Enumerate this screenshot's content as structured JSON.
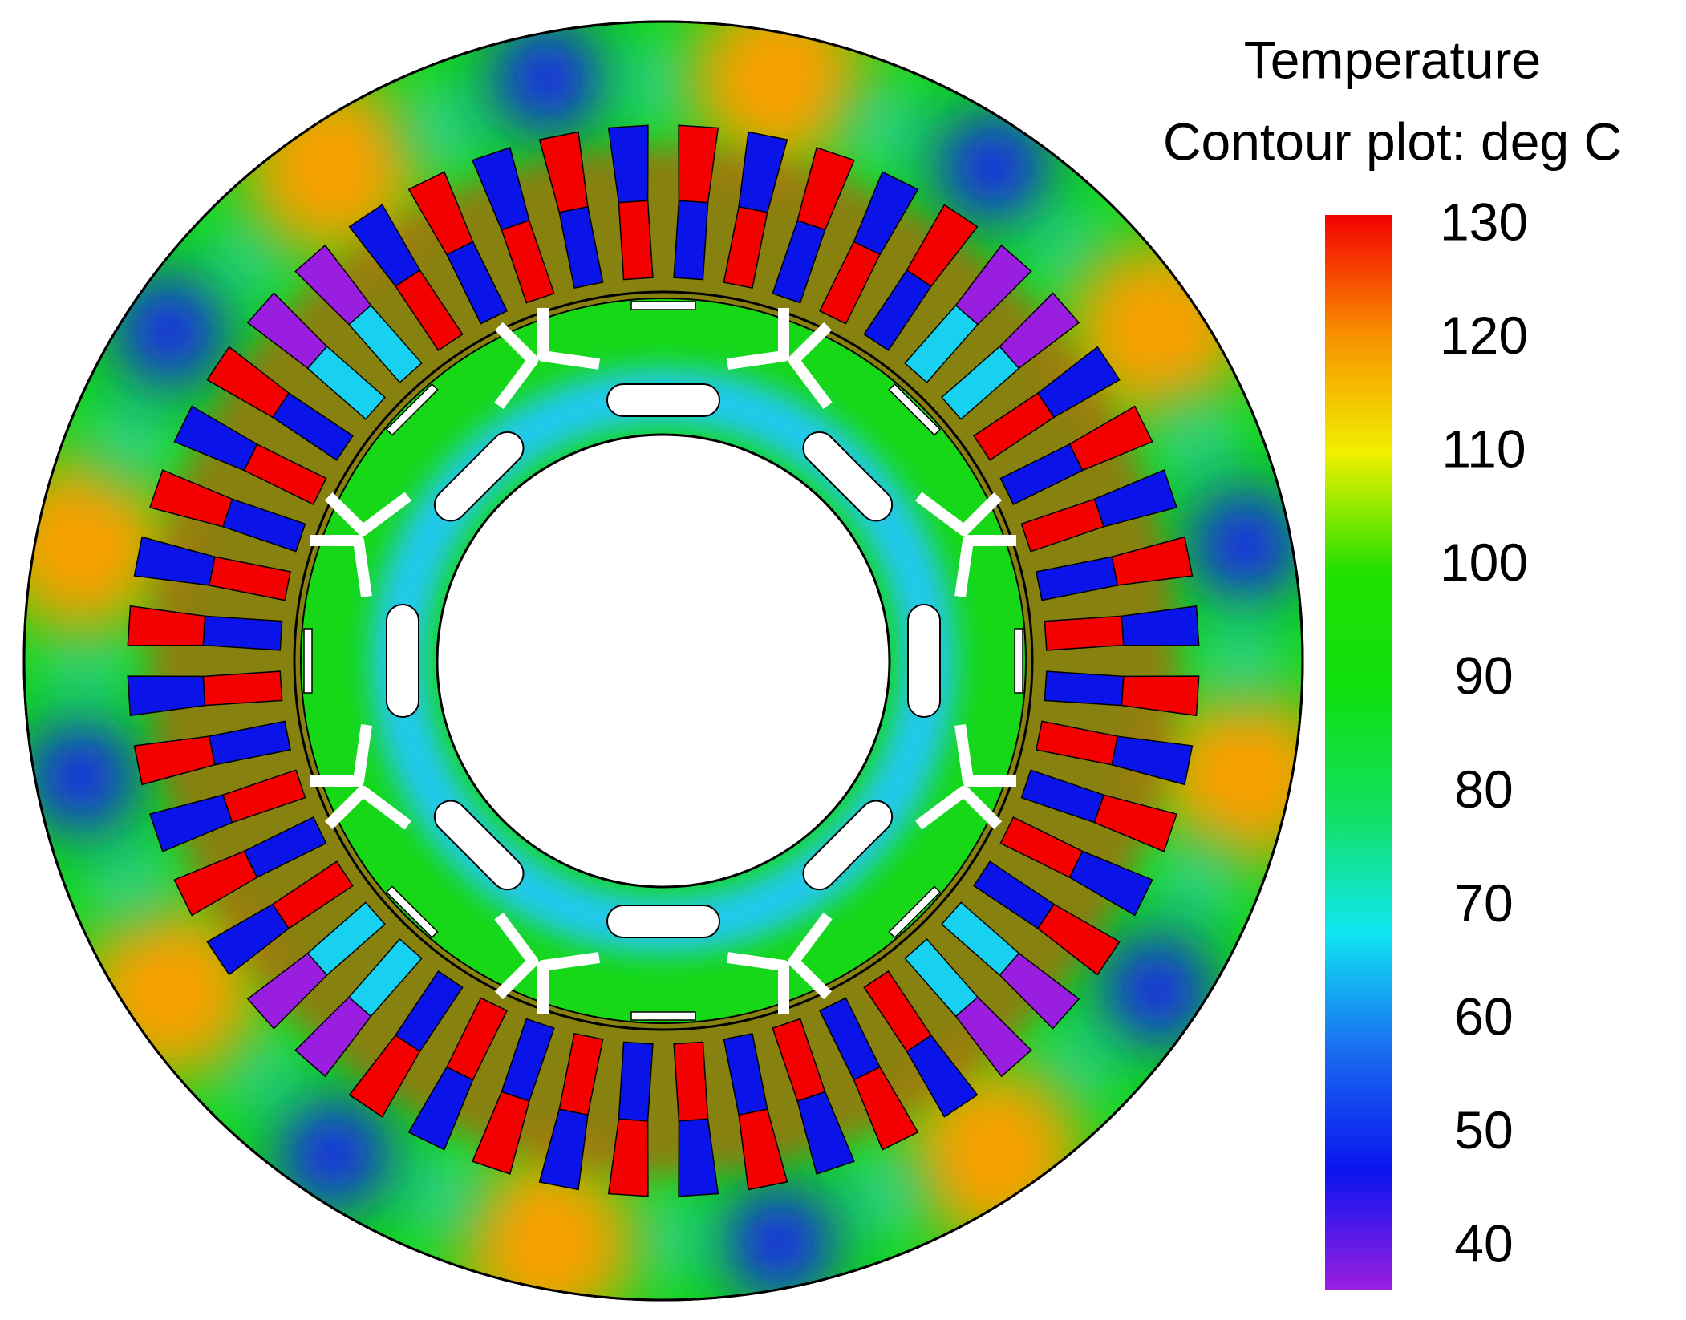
{
  "colorbar": {
    "title": "Temperature",
    "subtitle": "Contour plot: deg C",
    "ticks": [
      130,
      120,
      110,
      100,
      90,
      80,
      70,
      60,
      50,
      40
    ],
    "clim": [
      40,
      130
    ],
    "colors": [
      "#9a1ee0",
      "#0a14f0",
      "#1a6cf0",
      "#10e6f0",
      "#12e060",
      "#10e010",
      "#20e000",
      "#f0f000",
      "#f89000",
      "#f40000"
    ]
  }
}
